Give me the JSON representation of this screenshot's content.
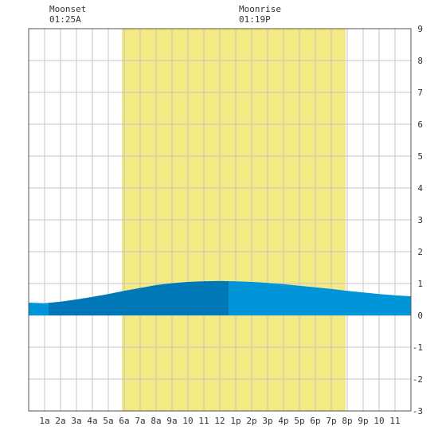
{
  "header": {
    "moonset_label": "Moonset",
    "moonset_time": "01:25A",
    "moonrise_label": "Moonrise",
    "moonrise_time": "01:19P"
  },
  "colors": {
    "daylight": "#f3ea84",
    "tide_dark": "#0077b6",
    "tide_light": "#0095d9",
    "grid": "#c4c4c4",
    "frame": "#555555"
  },
  "chart_data": {
    "type": "area",
    "title": "",
    "xlabel": "",
    "ylabel": "",
    "x_tick_labels": [
      "1a",
      "2a",
      "3a",
      "4a",
      "5a",
      "6a",
      "7a",
      "8a",
      "9a",
      "10",
      "11",
      "12",
      "1p",
      "2p",
      "3p",
      "4p",
      "5p",
      "6p",
      "7p",
      "8p",
      "9p",
      "10",
      "11"
    ],
    "y_ticks": [
      9,
      8,
      7,
      6,
      5,
      4,
      3,
      2,
      1,
      0,
      -1,
      -2,
      -3
    ],
    "xlim": [
      0,
      24
    ],
    "ylim": [
      -3,
      9
    ],
    "grid": true,
    "daylight_hours": [
      5.85,
      19.9
    ],
    "moonset_hour": 1.42,
    "moonrise_hour": 13.32,
    "series": [
      {
        "x": [
          0,
          1,
          2,
          3,
          4,
          5,
          6,
          7,
          8,
          9,
          10,
          11,
          12,
          13,
          14,
          15,
          16,
          17,
          18,
          19,
          20,
          21,
          22,
          23,
          24
        ],
        "y": [
          0.4,
          0.38,
          0.43,
          0.5,
          0.58,
          0.67,
          0.77,
          0.86,
          0.95,
          1.01,
          1.05,
          1.07,
          1.08,
          1.07,
          1.05,
          1.02,
          0.98,
          0.93,
          0.88,
          0.83,
          0.77,
          0.72,
          0.67,
          0.63,
          0.6
        ]
      }
    ],
    "shade_bands": [
      {
        "from": 0,
        "to": 1.25,
        "tone": "light"
      },
      {
        "from": 1.25,
        "to": 12.55,
        "tone": "dark"
      },
      {
        "from": 12.55,
        "to": 24,
        "tone": "light"
      }
    ]
  }
}
